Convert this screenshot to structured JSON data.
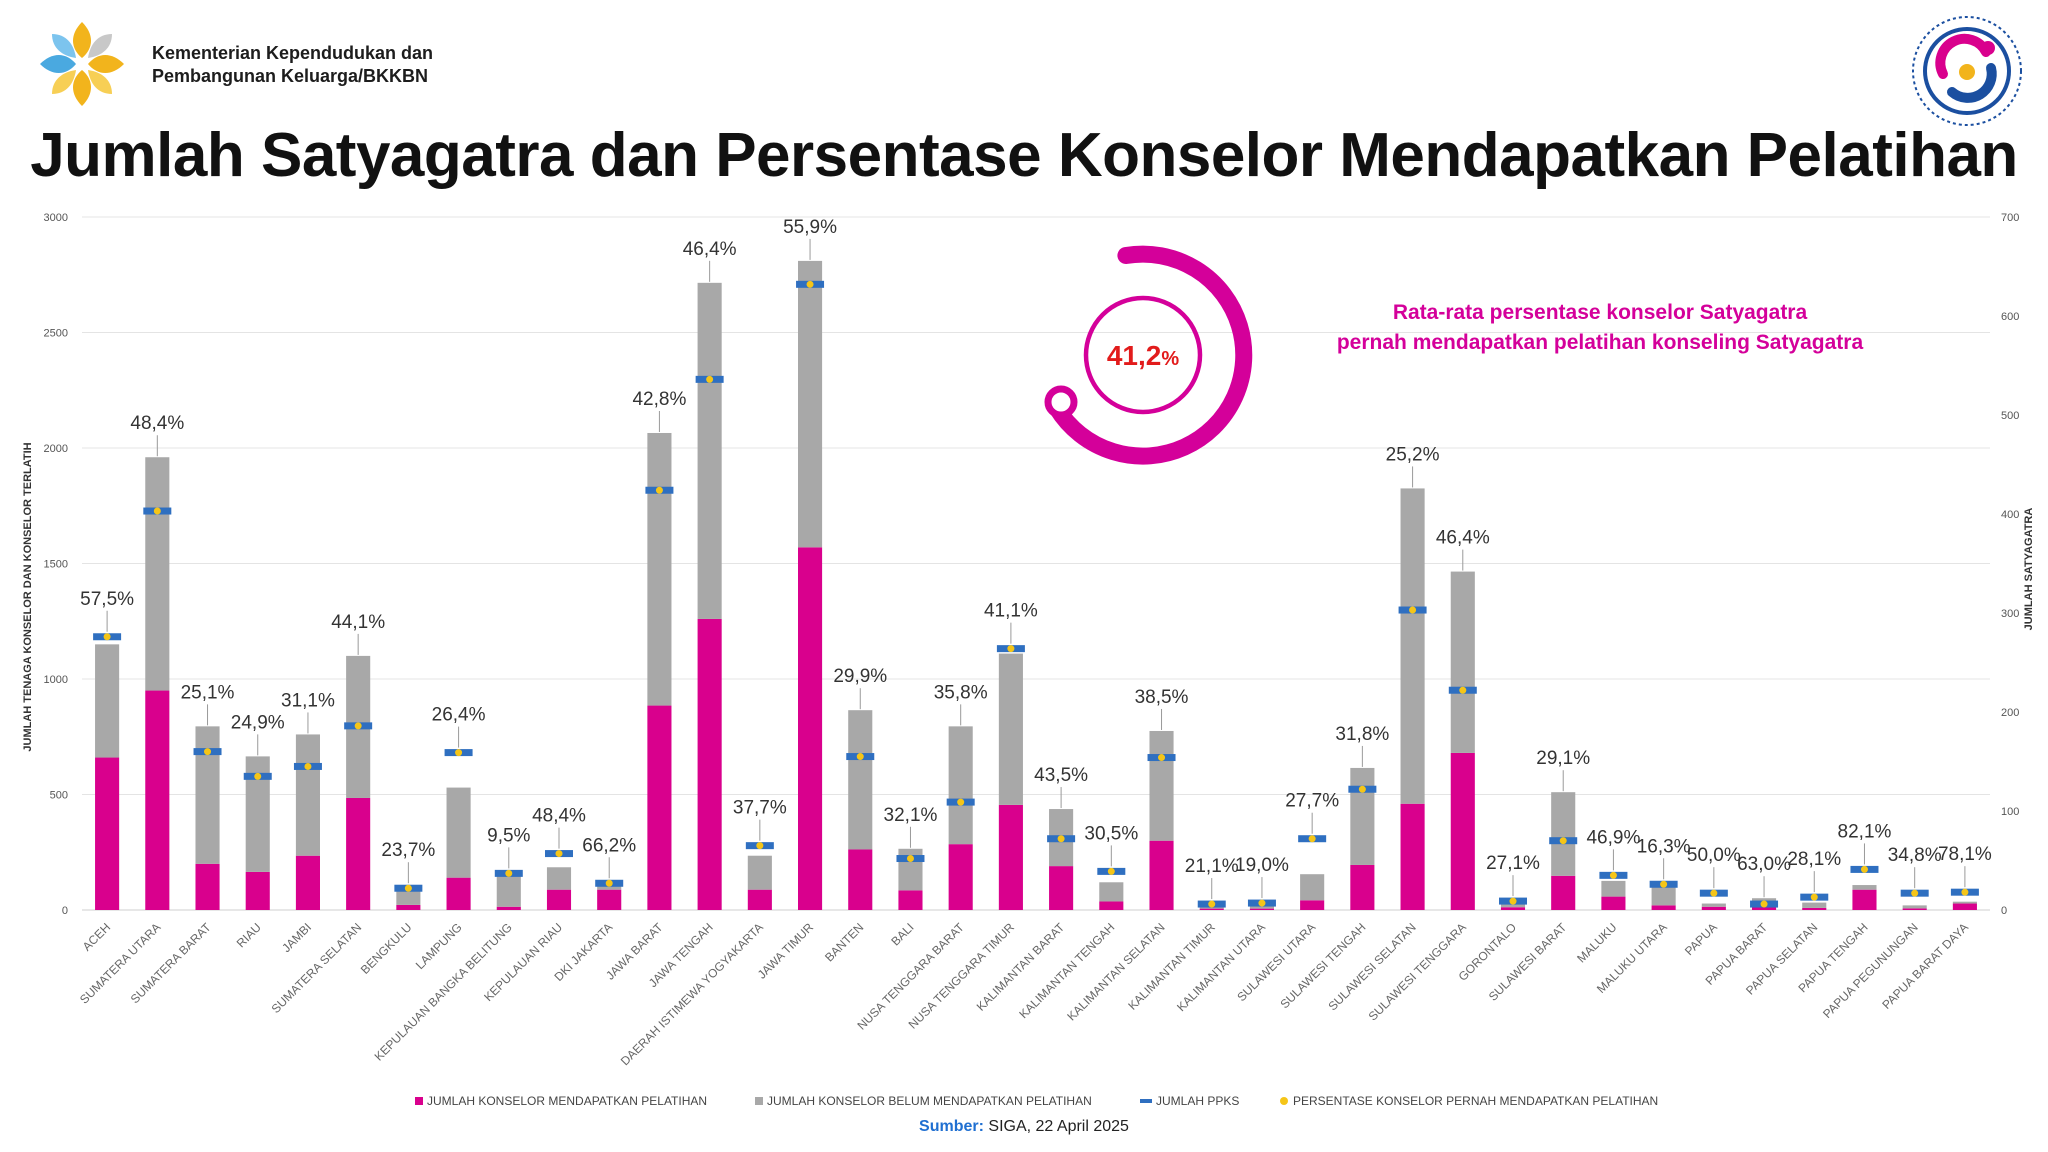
{
  "header": {
    "org_line1": "Kementerian Kependudukan dan",
    "org_line2": "Pembangunan Keluarga/BKKBN",
    "logo_icon": "bkkbn-logo-icon",
    "right_logo_icon": "satyagatra-logo-icon"
  },
  "colors": {
    "trained": "#d9008d",
    "untrained": "#a8a8a8",
    "ppks": "#2f6fc0",
    "pct": "#f5c518",
    "callout": "#d4009a",
    "callout_value": "#e21b1b"
  },
  "callout": {
    "value_number": "41,2",
    "value_unit": "%",
    "line1": "Rata-rata persentase konselor Satyagatra",
    "line2": "pernah mendapatkan pelatihan konseling Satyagatra"
  },
  "source": {
    "label": "Sumber:",
    "text": "SIGA, 22 April 2025"
  },
  "chart_data": {
    "type": "bar",
    "stacked": true,
    "title": "Jumlah Satyagatra dan Persentase Konselor Mendapatkan Pelatihan",
    "ylabel": "JUMLAH TENAGA KONSELOR DAN KONSELOR TERLATIH",
    "y2label": "JUMLAH SATYAGATRA",
    "ylim": [
      0,
      3000
    ],
    "y2lim": [
      0,
      700
    ],
    "yticks": [
      "0",
      "500",
      "1000",
      "1500",
      "2000",
      "2500",
      "3000"
    ],
    "y2ticks": [
      "0",
      "100",
      "200",
      "300",
      "400",
      "500",
      "600",
      "700"
    ],
    "grid": true,
    "legend_position": "bottom",
    "categories": [
      "ACEH",
      "SUMATERA UTARA",
      "SUMATERA BARAT",
      "RIAU",
      "JAMBI",
      "SUMATERA SELATAN",
      "BENGKULU",
      "LAMPUNG",
      "KEPULAUAN BANGKA BELITUNG",
      "KEPULAUAN RIAU",
      "DKI JAKARTA",
      "JAWA BARAT",
      "JAWA TENGAH",
      "DAERAH ISTIMEWA YOGYAKARTA",
      "JAWA TIMUR",
      "BANTEN",
      "BALI",
      "NUSA TENGGARA BARAT",
      "NUSA TENGGARA TIMUR",
      "KALIMANTAN BARAT",
      "KALIMANTAN TENGAH",
      "KALIMANTAN SELATAN",
      "KALIMANTAN TIMUR",
      "KALIMANTAN UTARA",
      "SULAWESI UTARA",
      "SULAWESI TENGAH",
      "SULAWESI SELATAN",
      "SULAWESI TENGGARA",
      "GORONTALO",
      "SULAWESI BARAT",
      "MALUKU",
      "MALUKU UTARA",
      "PAPUA",
      "PAPUA BARAT",
      "PAPUA SELATAN",
      "PAPUA TENGAH",
      "PAPUA PEGUNUNGAN",
      "PAPUA BARAT DAYA"
    ],
    "series": [
      {
        "name": "JUMLAH KONSELOR MENDAPATKAN PELATIHAN",
        "kind": "bar",
        "axis": "left",
        "values": [
          660,
          950,
          200,
          165,
          235,
          485,
          22,
          140,
          14,
          88,
          88,
          885,
          1260,
          88,
          1570,
          262,
          85,
          285,
          455,
          190,
          37,
          300,
          6,
          6,
          42,
          195,
          460,
          680,
          12,
          148,
          58,
          20,
          14,
          32,
          9,
          88,
          7,
          28
        ]
      },
      {
        "name": "JUMLAH KONSELOR BELUM MENDAPATKAN PELATIHAN",
        "kind": "bar",
        "axis": "left",
        "values": [
          490,
          1010,
          595,
          500,
          525,
          615,
          78,
          390,
          136,
          97,
          37,
          1180,
          1455,
          147,
          1240,
          603,
          180,
          510,
          655,
          247,
          83,
          475,
          22,
          26,
          113,
          420,
          1365,
          785,
          32,
          362,
          68,
          103,
          14,
          19,
          23,
          20,
          13,
          8
        ]
      },
      {
        "name": "JUMLAH PPKS",
        "kind": "marker",
        "axis": "right",
        "values": [
          276,
          403,
          160,
          135,
          145,
          186,
          22,
          159,
          37,
          57,
          27,
          424,
          536,
          65,
          632,
          155,
          52,
          109,
          264,
          72,
          39,
          154,
          6,
          7,
          72,
          122,
          303,
          222,
          9,
          70,
          35,
          26,
          17,
          6,
          13,
          41,
          17,
          18
        ]
      },
      {
        "name": "PERSENTASE KONSELOR PERNAH MENDAPATKAN PELATIHAN",
        "kind": "label",
        "unit": "%",
        "values": [
          57.5,
          48.4,
          25.1,
          24.9,
          31.1,
          44.1,
          23.7,
          26.4,
          9.5,
          48.4,
          66.2,
          42.8,
          46.4,
          37.7,
          55.9,
          29.9,
          32.1,
          35.8,
          41.1,
          43.5,
          30.5,
          38.5,
          21.1,
          19.0,
          27.7,
          31.8,
          25.2,
          46.4,
          27.1,
          29.1,
          46.9,
          16.3,
          50.0,
          63.0,
          28.1,
          82.1,
          34.8,
          78.1
        ],
        "labels": [
          "57,5%",
          "48,4%",
          "25,1%",
          "24,9%",
          "31,1%",
          "44,1%",
          "23,7%",
          "26,4%",
          "9,5%",
          "48,4%",
          "66,2%",
          "42,8%",
          "46,4%",
          "37,7%",
          "55,9%",
          "29,9%",
          "32,1%",
          "35,8%",
          "41,1%",
          "43,5%",
          "30,5%",
          "38,5%",
          "21,1%",
          "19,0%",
          "27,7%",
          "31,8%",
          "25,2%",
          "46,4%",
          "27,1%",
          "29,1%",
          "46,9%",
          "16,3%",
          "50,0%",
          "63,0%",
          "28,1%",
          "82,1%",
          "34,8%",
          "78,1%"
        ]
      }
    ]
  }
}
